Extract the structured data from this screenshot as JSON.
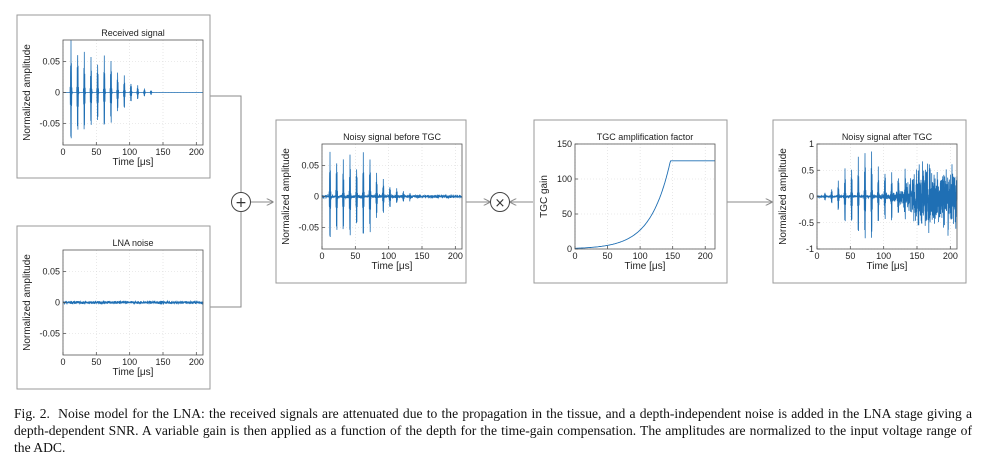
{
  "caption": {
    "label": "Fig. 2.",
    "text": "Noise model for the LNA: the received signals are attenuated due to the propagation in the tissue, and a depth-independent noise is added in the LNA stage giving a depth-dependent SNR. A variable gain is then applied as a function of the depth for the time-gain compensation. The amplitudes are normalized to the input voltage range of the ADC."
  },
  "operators": {
    "sum": "+",
    "product": "×"
  },
  "colors": {
    "signal": "#1f6fb4",
    "frame": "#9a9a9a",
    "axis": "#555555",
    "arrow": "#8a8a8a"
  },
  "chart_data": [
    {
      "id": "received",
      "type": "line",
      "title": "Received signal",
      "xlabel": "Time [μs]",
      "ylabel": "Normalized amplitude",
      "xlim": [
        0,
        210
      ],
      "ylim": [
        -0.085,
        0.085
      ],
      "xticks": [
        {
          "v": 0,
          "label": "0"
        },
        {
          "v": 50,
          "label": "50"
        },
        {
          "v": 100,
          "label": "100"
        },
        {
          "v": 150,
          "label": "150"
        },
        {
          "v": 200,
          "label": "200"
        }
      ],
      "yticks": [
        {
          "v": 0.05,
          "label": "0.05"
        },
        {
          "v": 0,
          "label": "0"
        },
        {
          "v": -0.05,
          "label": "-0.05"
        }
      ],
      "echo_times": [
        12,
        22,
        32,
        42,
        52,
        62,
        72,
        82,
        92,
        102,
        112,
        122,
        132
      ],
      "echo_amplitudes": [
        0.085,
        0.075,
        0.068,
        0.06,
        0.055,
        0.06,
        0.058,
        0.035,
        0.028,
        0.018,
        0.012,
        0.007,
        0.004
      ]
    },
    {
      "id": "lna-noise",
      "type": "line",
      "title": "LNA noise",
      "xlabel": "Time [μs]",
      "ylabel": "Normalized amplitude",
      "xlim": [
        0,
        210
      ],
      "ylim": [
        -0.085,
        0.085
      ],
      "xticks": [
        {
          "v": 0,
          "label": "0"
        },
        {
          "v": 50,
          "label": "50"
        },
        {
          "v": 100,
          "label": "100"
        },
        {
          "v": 150,
          "label": "150"
        },
        {
          "v": 200,
          "label": "200"
        }
      ],
      "yticks": [
        {
          "v": 0.05,
          "label": "0.05"
        },
        {
          "v": 0,
          "label": "0"
        },
        {
          "v": -0.05,
          "label": "-0.05"
        }
      ],
      "noise_level": 0.0022
    },
    {
      "id": "noisy-before",
      "type": "line",
      "title": "Noisy signal before TGC",
      "xlabel": "Time [μs]",
      "ylabel": "Normalized amplitude",
      "xlim": [
        0,
        210
      ],
      "ylim": [
        -0.085,
        0.085
      ],
      "xticks": [
        {
          "v": 0,
          "label": "0"
        },
        {
          "v": 50,
          "label": "50"
        },
        {
          "v": 100,
          "label": "100"
        },
        {
          "v": 150,
          "label": "150"
        },
        {
          "v": 200,
          "label": "200"
        }
      ],
      "yticks": [
        {
          "v": 0.05,
          "label": "0.05"
        },
        {
          "v": 0,
          "label": "0"
        },
        {
          "v": -0.05,
          "label": "-0.05"
        }
      ],
      "echo_times": [
        12,
        22,
        32,
        42,
        52,
        62,
        72,
        82,
        92,
        102,
        112,
        122,
        132
      ],
      "echo_amplitudes": [
        0.075,
        0.068,
        0.06,
        0.072,
        0.055,
        0.07,
        0.068,
        0.04,
        0.03,
        0.02,
        0.014,
        0.01,
        0.007
      ],
      "noise_level": 0.0025
    },
    {
      "id": "tgc-gain",
      "type": "line",
      "title": "TGC amplification factor",
      "xlabel": "Time [μs]",
      "ylabel": "TGC gain",
      "xlim": [
        0,
        215
      ],
      "ylim": [
        0,
        150
      ],
      "xticks": [
        {
          "v": 0,
          "label": "0"
        },
        {
          "v": 50,
          "label": "50"
        },
        {
          "v": 100,
          "label": "100"
        },
        {
          "v": 150,
          "label": "150"
        },
        {
          "v": 200,
          "label": "200"
        }
      ],
      "yticks": [
        {
          "v": 0,
          "label": "0"
        },
        {
          "v": 50,
          "label": "50"
        },
        {
          "v": 100,
          "label": "100"
        },
        {
          "v": 150,
          "label": "150"
        }
      ],
      "x": [
        0,
        20,
        40,
        60,
        80,
        100,
        110,
        120,
        130,
        140,
        145,
        147,
        160,
        180,
        200,
        215
      ],
      "y": [
        1,
        2,
        4,
        7,
        13,
        25,
        35,
        49,
        69,
        97,
        115,
        126,
        126,
        126,
        126,
        126
      ]
    },
    {
      "id": "noisy-after",
      "type": "line",
      "title": "Noisy signal after TGC",
      "xlabel": "Time [μs]",
      "ylabel": "Normalized amplitude",
      "xlim": [
        0,
        210
      ],
      "ylim": [
        -1,
        1
      ],
      "xticks": [
        {
          "v": 0,
          "label": "0"
        },
        {
          "v": 50,
          "label": "50"
        },
        {
          "v": 100,
          "label": "100"
        },
        {
          "v": 150,
          "label": "150"
        },
        {
          "v": 200,
          "label": "200"
        }
      ],
      "yticks": [
        {
          "v": 1,
          "label": "1"
        },
        {
          "v": 0.5,
          "label": "0.5"
        },
        {
          "v": 0,
          "label": "0"
        },
        {
          "v": -0.5,
          "label": "-0.5"
        },
        {
          "v": -1,
          "label": "-1"
        }
      ],
      "echo_times": [
        12,
        22,
        32,
        42,
        52,
        62,
        72,
        82,
        92,
        102,
        112,
        122,
        132
      ],
      "echo_amplitudes": [
        0.08,
        0.15,
        0.3,
        0.55,
        0.6,
        0.75,
        0.95,
        0.9,
        0.55,
        0.55,
        0.5,
        0.45,
        0.4
      ]
    }
  ]
}
